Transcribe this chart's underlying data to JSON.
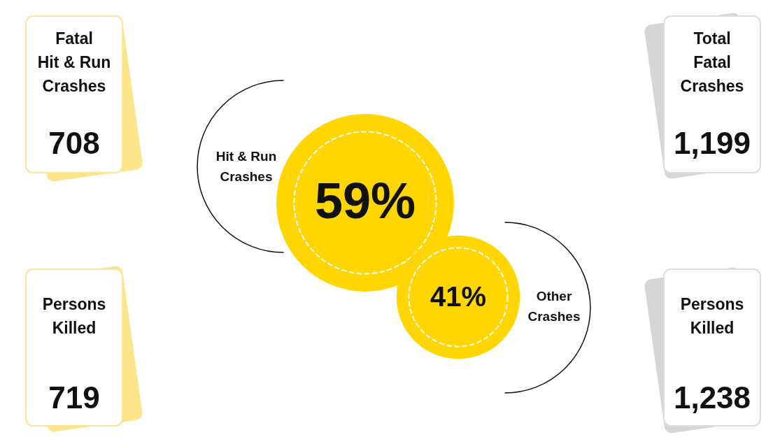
{
  "chart_data": [
    {
      "type": "other",
      "categories": [
        "Hit & Run\nCrashes",
        "Other\nCrashes"
      ],
      "values": [
        59,
        41
      ],
      "value_labels": [
        "59%",
        "41%"
      ],
      "color": "#ffd600"
    },
    {
      "type": "other",
      "categories": [
        "Fatal\nHit & Run\nCrashes",
        "Total\nFatal\nCrashes",
        "Persons\nKilled",
        "Persons\nKilled"
      ],
      "values": [
        708,
        1199,
        719,
        1238
      ],
      "value_labels": [
        "708",
        "1,199",
        "719",
        "1,238"
      ],
      "colors": [
        "#fbe39a",
        "#dddddd",
        "#fbe39a",
        "#dddddd"
      ]
    }
  ]
}
